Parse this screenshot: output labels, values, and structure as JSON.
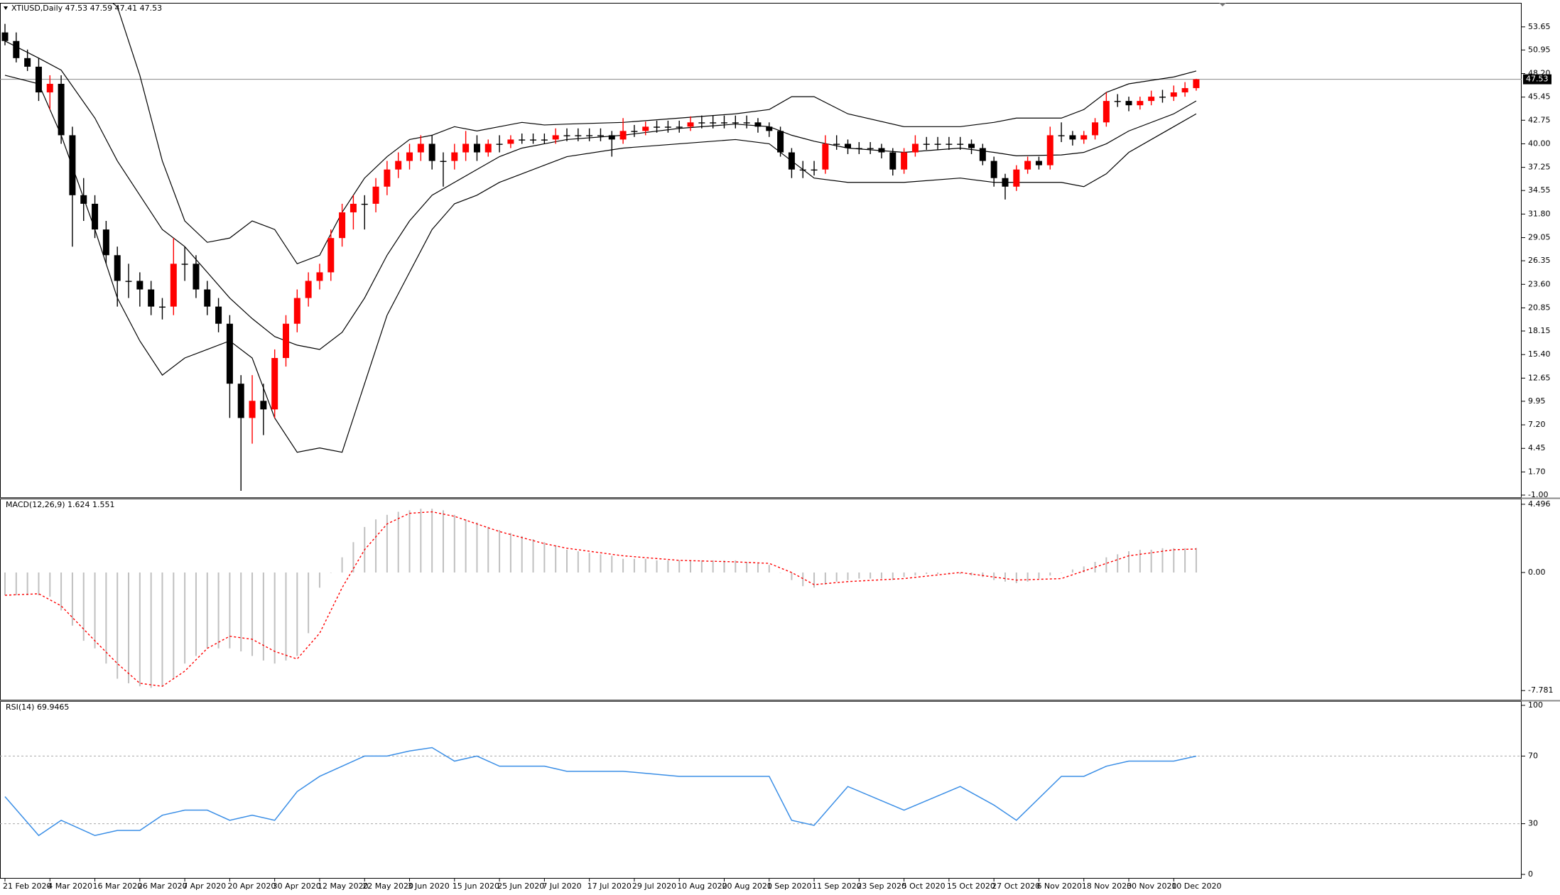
{
  "chart_data": [
    {
      "type": "candlestick",
      "title": "XTIUSD,Daily  47.53 47.59 47.41 47.53",
      "categories": [
        "21 Feb 2020",
        null,
        null,
        null,
        "4 Mar 2020",
        null,
        null,
        null,
        "16 Mar 2020",
        null,
        null,
        null,
        "26 Mar 2020",
        null,
        null,
        null,
        "7 Apr 2020",
        null,
        null,
        null,
        "20 Apr 2020",
        null,
        null,
        null,
        "30 Apr 2020",
        null,
        null,
        null,
        "12 May 2020",
        null,
        null,
        null,
        "22 May 2020",
        null,
        null,
        null,
        "3 Jun 2020",
        null,
        null,
        null,
        "15 Jun 2020",
        null,
        null,
        null,
        "25 Jun 2020",
        null,
        null,
        null,
        "7 Jul 2020",
        null,
        null,
        null,
        "17 Jul 2020",
        null,
        null,
        null,
        "29 Jul 2020",
        null,
        null,
        null,
        "10 Aug 2020",
        null,
        null,
        null,
        "20 Aug 2020",
        null,
        null,
        null,
        "1 Sep 2020",
        null,
        null,
        null,
        "11 Sep 2020",
        null,
        null,
        null,
        "23 Sep 2020",
        null,
        null,
        null,
        "5 Oct 2020",
        null,
        null,
        null,
        "15 Oct 2020",
        null,
        null,
        null,
        "27 Oct 2020",
        null,
        null,
        null,
        "6 Nov 2020",
        null,
        null,
        null,
        "18 Nov 2020",
        null,
        null,
        null,
        "30 Nov 2020",
        null,
        null,
        null,
        "10 Dec 2020",
        null,
        null
      ],
      "open": [
        53,
        52,
        50,
        49,
        46,
        47,
        41,
        34,
        33,
        30,
        27,
        24,
        24,
        23,
        21,
        21,
        26,
        26,
        23,
        21,
        19,
        12,
        8,
        10,
        9,
        15,
        19,
        22,
        24,
        25,
        29,
        32,
        33,
        33,
        35,
        37,
        38,
        39,
        40,
        38,
        38,
        39,
        40,
        39,
        40,
        40,
        40.5,
        40.5,
        40.5,
        40.5,
        41,
        41,
        41,
        41,
        41,
        40.5,
        41.5,
        41.5,
        42,
        42,
        42,
        42,
        42.5,
        42.5,
        42.5,
        42.5,
        42.5,
        42.5,
        42,
        41.5,
        39,
        37,
        37,
        37,
        40,
        40,
        39.5,
        39.5,
        39.5,
        39,
        37,
        39,
        40,
        40,
        40,
        40,
        40,
        39.5,
        38,
        36,
        35,
        37,
        38,
        37.5,
        41,
        41,
        40.5,
        41,
        42.5,
        45,
        45,
        44.5,
        45,
        45.5,
        45.5,
        46,
        46.5
      ],
      "high": [
        54,
        53,
        51,
        50,
        48,
        48,
        42,
        36,
        34,
        31,
        28,
        26,
        25,
        24,
        22,
        29,
        28,
        27,
        24,
        22,
        20,
        13,
        13,
        12,
        16,
        20,
        23,
        25,
        26,
        30,
        33,
        34,
        34,
        36,
        38,
        39,
        40,
        41,
        41,
        39,
        40,
        41.5,
        41,
        40.5,
        41,
        41,
        41.2,
        41.2,
        41.2,
        41.8,
        41.8,
        41.8,
        41.8,
        41.8,
        41.5,
        43,
        42.2,
        42.6,
        42.7,
        42.7,
        42.7,
        43.2,
        43.3,
        43.3,
        43.3,
        43.3,
        43.3,
        43,
        42.5,
        42,
        39.5,
        38,
        38,
        41,
        41,
        40.5,
        40.2,
        40.2,
        40,
        39.5,
        39.5,
        41,
        40.8,
        40.8,
        40.8,
        40.8,
        40.5,
        40,
        38.5,
        36.5,
        37.5,
        38.5,
        38.5,
        42,
        42.5,
        41.5,
        41.5,
        43,
        46,
        45.8,
        45.5,
        45.5,
        46.2,
        46.3,
        46.8,
        47.2,
        47.59
      ],
      "low": [
        51.5,
        49.5,
        48.5,
        45,
        44,
        40,
        28,
        31,
        29,
        26,
        21,
        22,
        21,
        20,
        19.5,
        20,
        24,
        22,
        20,
        18,
        8,
        -0.5,
        5,
        6,
        8,
        14,
        18,
        21,
        23,
        24,
        28,
        30,
        30,
        32,
        34,
        36,
        37,
        38,
        37,
        35,
        37,
        38,
        38,
        38.5,
        39,
        39.5,
        40,
        40,
        40,
        40,
        40.3,
        40.3,
        40.3,
        40.3,
        38.5,
        40,
        40.8,
        41,
        41.3,
        41.3,
        41.3,
        41.5,
        41.8,
        41.8,
        41.8,
        41.8,
        41.8,
        41.3,
        40.8,
        38.5,
        36,
        36,
        36.3,
        36.5,
        39.3,
        38.8,
        38.8,
        38.8,
        38.3,
        36.3,
        36.5,
        38.5,
        39.3,
        39.3,
        39.3,
        39.3,
        38.8,
        37.5,
        35,
        33.5,
        34.5,
        36.5,
        37,
        37,
        40.2,
        39.8,
        40,
        40.5,
        42,
        44.3,
        43.8,
        44,
        44.5,
        44.8,
        45,
        45.5,
        46.2
      ],
      "close": [
        52,
        50,
        49,
        46,
        47,
        41,
        34,
        33,
        30,
        27,
        24,
        24,
        23,
        21,
        21,
        26,
        26,
        23,
        21,
        19,
        12,
        8,
        10,
        9,
        15,
        19,
        22,
        24,
        25,
        29,
        32,
        33,
        33,
        35,
        37,
        38,
        39,
        40,
        38,
        38,
        39,
        40,
        39,
        40,
        40,
        40.5,
        40.5,
        40.5,
        40.5,
        41,
        41,
        41,
        41,
        41,
        40.5,
        41.5,
        41.5,
        42,
        42,
        42,
        42,
        42.5,
        42.5,
        42.5,
        42.5,
        42.5,
        42.5,
        42,
        41.5,
        39,
        37,
        37,
        37,
        40,
        40,
        39.5,
        39.5,
        39.5,
        39,
        37,
        39,
        40,
        40,
        40,
        40,
        40,
        39.5,
        38,
        36,
        35,
        37,
        38,
        37.5,
        41,
        41,
        40.5,
        41,
        42.5,
        45,
        45,
        44.5,
        45,
        45.5,
        45.5,
        46,
        46.5,
        47.53
      ],
      "up_color": "#ff0000",
      "down_color": "#000000",
      "bands": {
        "color": "#000000",
        "x": [
          0,
          3,
          5,
          8,
          10,
          12,
          14,
          16,
          18,
          20,
          22,
          24,
          26,
          28,
          30,
          32,
          34,
          36,
          38,
          40,
          42,
          44,
          46,
          48,
          50,
          55,
          60,
          65,
          68,
          70,
          72,
          75,
          80,
          85,
          88,
          90,
          94,
          96,
          98,
          100,
          104,
          106
        ],
        "upper": [
          62,
          61,
          60,
          58,
          56,
          48,
          38,
          31,
          28.5,
          29,
          31,
          30,
          26,
          27,
          32,
          36,
          38.5,
          40.5,
          41,
          42,
          41.5,
          42,
          42.5,
          42.2,
          42.3,
          42.5,
          43,
          43.5,
          44,
          45.5,
          45.5,
          43.5,
          42,
          42,
          42.5,
          43,
          43,
          44,
          46,
          47,
          47.8,
          48.5
        ],
        "middle": [
          52,
          50,
          48.6,
          43,
          38,
          34,
          30,
          28,
          25,
          22,
          19.6,
          17.5,
          16.5,
          16,
          18,
          22,
          27,
          31,
          34,
          35.5,
          37,
          38.5,
          39.5,
          40,
          40.5,
          41,
          41.8,
          42.3,
          42,
          41,
          40.3,
          39.5,
          39,
          39.5,
          39,
          38.6,
          38.7,
          39,
          40,
          41.5,
          43.5,
          45
        ],
        "lower": [
          48,
          47,
          41,
          30,
          22,
          17,
          13,
          15,
          16,
          17,
          15,
          8,
          4,
          4.5,
          4,
          12,
          20,
          25,
          30,
          33,
          34,
          35.5,
          36.5,
          37.5,
          38.5,
          39.5,
          40,
          40.5,
          40,
          38,
          36,
          35.5,
          35.5,
          36,
          35.5,
          35.5,
          35.5,
          35,
          36.5,
          39,
          42,
          43.5
        ]
      },
      "last_price": 47.53,
      "ylim": [
        -1.25,
        56.37
      ],
      "yticks": [
        53.65,
        50.95,
        {
          "value": 48.2,
          "label": "48.20"
        },
        45.45,
        42.75,
        {
          "value": 40,
          "label": "40.00"
        },
        37.25,
        34.55,
        {
          "value": 31.8,
          "label": "31.80"
        },
        29.05,
        26.35,
        {
          "value": 23.6,
          "label": "23.60"
        },
        20.85,
        18.15,
        {
          "value": 15.4,
          "label": "15.40"
        },
        12.65,
        9.95,
        {
          "value": 7.2,
          "label": "7.20"
        },
        4.45,
        {
          "value": 1.7,
          "label": "1.70"
        },
        {
          "value": -1,
          "label": "-1.00"
        }
      ]
    },
    {
      "type": "macd",
      "title": "MACD(12,26,9) 1.624 1.551",
      "color": "#c0c0c0",
      "values": [
        -1.5,
        -1.5,
        -1.5,
        -1.5,
        -1.6,
        -2.5,
        -3.5,
        -4.5,
        -5,
        -6,
        -7,
        -7.3,
        -7.5,
        -7.6,
        -7.5,
        -7,
        -6,
        -5.5,
        -5,
        -5,
        -5,
        -5.2,
        -5.5,
        -5.8,
        -6,
        -5.8,
        -5.5,
        -4,
        -1,
        0,
        1,
        2,
        3,
        3.5,
        3.8,
        4,
        4.1,
        4.2,
        4.2,
        4.1,
        3.8,
        3.5,
        3.3,
        3,
        2.8,
        2.6,
        2.4,
        2.2,
        2,
        1.8,
        1.5,
        1.4,
        1.3,
        1.2,
        1.1,
        0.9,
        0.9,
        0.9,
        0.8,
        0.8,
        0.8,
        0.8,
        0.8,
        0.8,
        0.8,
        0.8,
        0.7,
        0.6,
        0.5,
        0,
        -0.5,
        -0.9,
        -1,
        -0.8,
        -0.6,
        -0.5,
        -0.4,
        -0.4,
        -0.4,
        -0.5,
        -0.3,
        -0.2,
        -0.1,
        -0.1,
        -0.1,
        -0.1,
        -0.2,
        -0.3,
        -0.5,
        -0.6,
        -0.7,
        -0.6,
        -0.4,
        -0.2,
        0,
        0.2,
        0.4,
        0.7,
        1,
        1.2,
        1.4,
        1.5,
        1.5,
        1.6,
        1.6,
        1.6,
        1.62
      ],
      "signal": {
        "color": "#ff0000",
        "x": [
          0,
          3,
          5,
          8,
          10,
          12,
          14,
          16,
          18,
          20,
          22,
          24,
          26,
          28,
          30,
          32,
          34,
          36,
          38,
          40,
          42,
          44,
          46,
          48,
          50,
          55,
          60,
          65,
          68,
          70,
          72,
          75,
          80,
          85,
          88,
          90,
          94,
          96,
          98,
          100,
          104,
          106
        ],
        "values": [
          -1.5,
          -1.4,
          -2.2,
          -4.5,
          -6,
          -7.3,
          -7.5,
          -6.5,
          -5,
          -4.2,
          -4.4,
          -5.2,
          -5.7,
          -4,
          -1,
          1.5,
          3.2,
          3.9,
          4,
          3.7,
          3.2,
          2.7,
          2.3,
          1.9,
          1.6,
          1.1,
          0.8,
          0.7,
          0.6,
          0,
          -0.8,
          -0.6,
          -0.4,
          0,
          -0.3,
          -0.5,
          -0.4,
          0.1,
          0.6,
          1.1,
          1.5,
          1.55
        ]
      },
      "ylim": [
        -8.38,
        4.82
      ],
      "yticks": [
        4.496,
        {
          "value": 0,
          "label": "0.00"
        },
        -7.781
      ]
    },
    {
      "type": "line",
      "title": "RSI(14) 69.9465",
      "color": "#3a8ee6",
      "x": [
        0,
        3,
        5,
        8,
        10,
        12,
        14,
        16,
        18,
        20,
        22,
        24,
        26,
        28,
        30,
        32,
        34,
        36,
        38,
        40,
        42,
        44,
        46,
        48,
        50,
        55,
        60,
        65,
        68,
        70,
        72,
        75,
        80,
        85,
        88,
        90,
        94,
        96,
        98,
        100,
        104,
        106
      ],
      "values": [
        46,
        23,
        32,
        23,
        26,
        26,
        35,
        38,
        38,
        32,
        35,
        32,
        49,
        58,
        64,
        70,
        70,
        73,
        75,
        67,
        70,
        64,
        64,
        64,
        61,
        61,
        58,
        58,
        58,
        32,
        29,
        52,
        38,
        52,
        41,
        32,
        58,
        58,
        64,
        67,
        67,
        69.9465
      ],
      "levels": [
        70,
        30
      ],
      "ylim": [
        -2.1,
        102.1
      ],
      "yticks": [
        100,
        70,
        30,
        0
      ]
    }
  ]
}
